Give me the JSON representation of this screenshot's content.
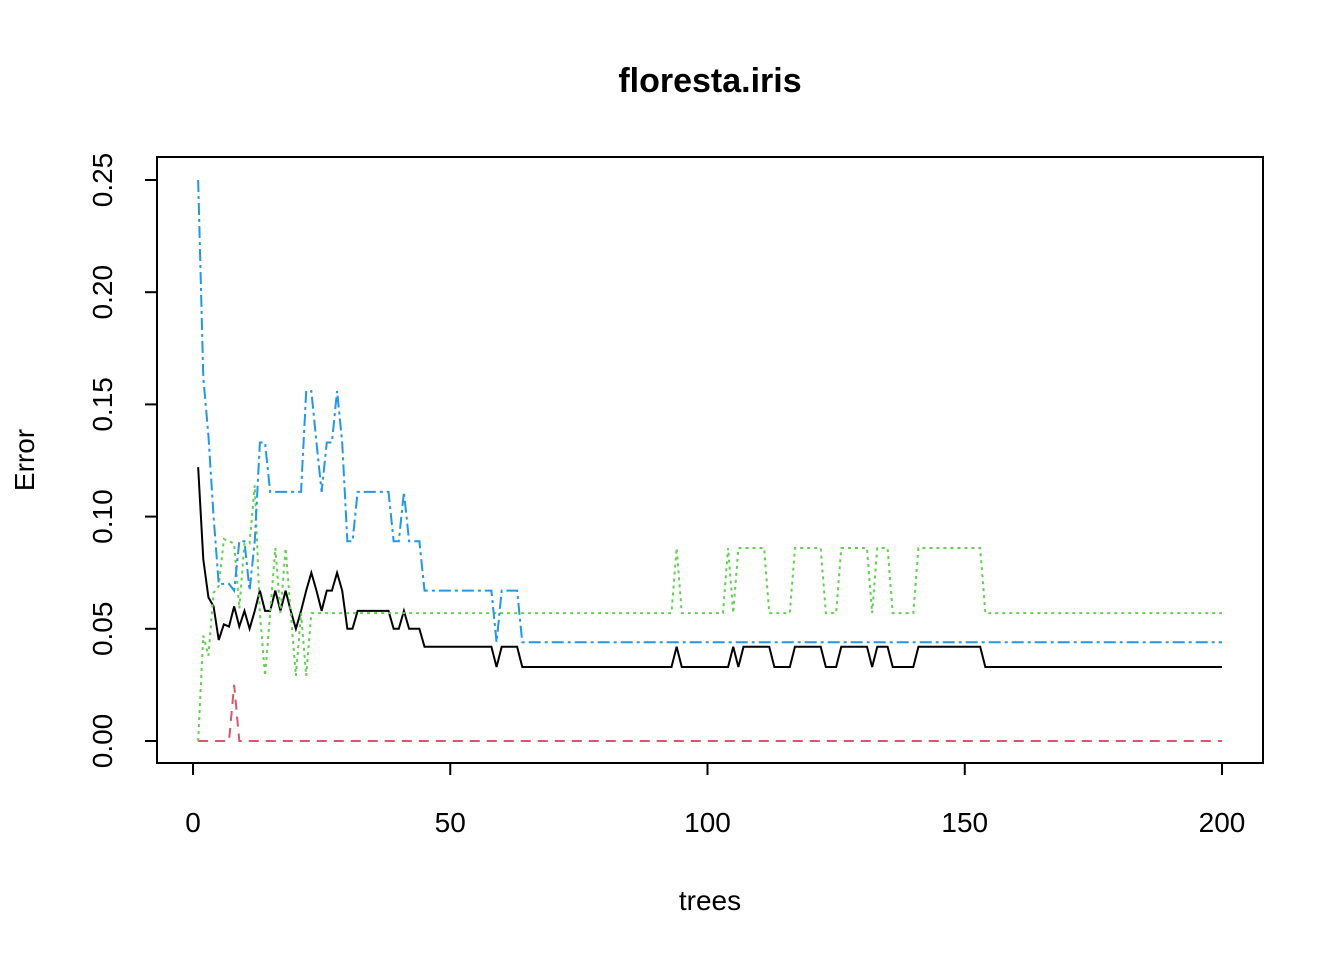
{
  "chart_data": {
    "type": "line",
    "title": "floresta.iris",
    "xlabel": "trees",
    "ylabel": "Error",
    "xlim": [
      0,
      200
    ],
    "ylim": [
      0,
      0.25
    ],
    "grid": false,
    "x_ticks": [
      "0",
      "50",
      "100",
      "150",
      "200"
    ],
    "y_ticks": [
      "0.00",
      "0.05",
      "0.10",
      "0.15",
      "0.20",
      "0.25"
    ],
    "series": [
      {
        "color": "#000000",
        "dash": "",
        "points": [
          [
            1,
            0.122
          ],
          [
            2,
            0.081
          ],
          [
            3,
            0.064
          ],
          [
            4,
            0.06
          ],
          [
            5,
            0.045
          ],
          [
            6,
            0.052
          ],
          [
            7,
            0.051
          ],
          [
            8,
            0.06
          ],
          [
            9,
            0.051
          ],
          [
            10,
            0.058
          ],
          [
            11,
            0.05
          ],
          [
            12,
            0.058
          ],
          [
            13,
            0.067
          ],
          [
            14,
            0.058
          ],
          [
            15,
            0.058
          ],
          [
            16,
            0.067
          ],
          [
            17,
            0.058
          ],
          [
            18,
            0.067
          ],
          [
            19,
            0.058
          ],
          [
            20,
            0.05
          ],
          [
            21,
            0.058
          ],
          [
            22,
            0.067
          ],
          [
            23,
            0.075
          ],
          [
            24,
            0.067
          ],
          [
            25,
            0.058
          ],
          [
            26,
            0.067
          ],
          [
            27,
            0.067
          ],
          [
            28,
            0.075
          ],
          [
            29,
            0.067
          ],
          [
            30,
            0.05
          ],
          [
            31,
            0.05
          ],
          [
            32,
            0.058
          ],
          [
            38,
            0.058
          ],
          [
            39,
            0.05
          ],
          [
            40,
            0.05
          ],
          [
            41,
            0.058
          ],
          [
            42,
            0.05
          ],
          [
            44,
            0.05
          ],
          [
            45,
            0.042
          ],
          [
            58,
            0.042
          ],
          [
            59,
            0.033
          ],
          [
            60,
            0.042
          ],
          [
            63,
            0.042
          ],
          [
            64,
            0.033
          ],
          [
            93,
            0.033
          ],
          [
            94,
            0.042
          ],
          [
            95,
            0.033
          ],
          [
            104,
            0.033
          ],
          [
            105,
            0.042
          ],
          [
            106,
            0.033
          ],
          [
            107,
            0.042
          ],
          [
            112,
            0.042
          ],
          [
            113,
            0.033
          ],
          [
            116,
            0.033
          ],
          [
            117,
            0.042
          ],
          [
            122,
            0.042
          ],
          [
            123,
            0.033
          ],
          [
            125,
            0.033
          ],
          [
            126,
            0.042
          ],
          [
            131,
            0.042
          ],
          [
            132,
            0.033
          ],
          [
            133,
            0.042
          ],
          [
            135,
            0.042
          ],
          [
            136,
            0.033
          ],
          [
            140,
            0.033
          ],
          [
            141,
            0.042
          ],
          [
            153,
            0.042
          ],
          [
            154,
            0.033
          ],
          [
            200,
            0.033
          ]
        ]
      },
      {
        "color": "#df536b",
        "dash": "10,7",
        "points": [
          [
            1,
            0.0
          ],
          [
            7,
            0.0
          ],
          [
            8,
            0.025
          ],
          [
            9,
            0.0
          ],
          [
            200,
            0.0
          ]
        ]
      },
      {
        "color": "#61d04f",
        "dash": "3,4",
        "points": [
          [
            1,
            0.0
          ],
          [
            2,
            0.047
          ],
          [
            3,
            0.038
          ],
          [
            4,
            0.066
          ],
          [
            5,
            0.069
          ],
          [
            6,
            0.09
          ],
          [
            8,
            0.088
          ],
          [
            9,
            0.059
          ],
          [
            10,
            0.088
          ],
          [
            11,
            0.088
          ],
          [
            12,
            0.114
          ],
          [
            13,
            0.057
          ],
          [
            14,
            0.029
          ],
          [
            15,
            0.057
          ],
          [
            16,
            0.086
          ],
          [
            17,
            0.057
          ],
          [
            18,
            0.086
          ],
          [
            19,
            0.057
          ],
          [
            20,
            0.029
          ],
          [
            21,
            0.057
          ],
          [
            22,
            0.029
          ],
          [
            23,
            0.057
          ],
          [
            93,
            0.057
          ],
          [
            94,
            0.086
          ],
          [
            95,
            0.057
          ],
          [
            103,
            0.057
          ],
          [
            104,
            0.086
          ],
          [
            105,
            0.057
          ],
          [
            106,
            0.086
          ],
          [
            111,
            0.086
          ],
          [
            112,
            0.057
          ],
          [
            116,
            0.057
          ],
          [
            117,
            0.086
          ],
          [
            122,
            0.086
          ],
          [
            123,
            0.057
          ],
          [
            125,
            0.057
          ],
          [
            126,
            0.086
          ],
          [
            131,
            0.086
          ],
          [
            132,
            0.057
          ],
          [
            133,
            0.086
          ],
          [
            135,
            0.086
          ],
          [
            136,
            0.057
          ],
          [
            140,
            0.057
          ],
          [
            141,
            0.086
          ],
          [
            153,
            0.086
          ],
          [
            154,
            0.057
          ],
          [
            200,
            0.057
          ]
        ]
      },
      {
        "color": "#2297e6",
        "dash": "12,4,3,4",
        "points": [
          [
            1,
            0.25
          ],
          [
            2,
            0.162
          ],
          [
            3,
            0.136
          ],
          [
            4,
            0.1
          ],
          [
            5,
            0.07
          ],
          [
            6,
            0.07
          ],
          [
            7,
            0.07
          ],
          [
            8,
            0.067
          ],
          [
            9,
            0.089
          ],
          [
            10,
            0.089
          ],
          [
            11,
            0.067
          ],
          [
            12,
            0.089
          ],
          [
            13,
            0.133
          ],
          [
            14,
            0.133
          ],
          [
            15,
            0.111
          ],
          [
            16,
            0.111
          ],
          [
            21,
            0.111
          ],
          [
            22,
            0.156
          ],
          [
            23,
            0.156
          ],
          [
            24,
            0.133
          ],
          [
            25,
            0.111
          ],
          [
            26,
            0.133
          ],
          [
            27,
            0.133
          ],
          [
            28,
            0.156
          ],
          [
            29,
            0.133
          ],
          [
            30,
            0.089
          ],
          [
            31,
            0.089
          ],
          [
            32,
            0.111
          ],
          [
            38,
            0.111
          ],
          [
            39,
            0.089
          ],
          [
            40,
            0.089
          ],
          [
            41,
            0.111
          ],
          [
            42,
            0.089
          ],
          [
            44,
            0.089
          ],
          [
            45,
            0.067
          ],
          [
            58,
            0.067
          ],
          [
            59,
            0.044
          ],
          [
            60,
            0.067
          ],
          [
            63,
            0.067
          ],
          [
            64,
            0.044
          ],
          [
            200,
            0.044
          ]
        ]
      }
    ]
  }
}
